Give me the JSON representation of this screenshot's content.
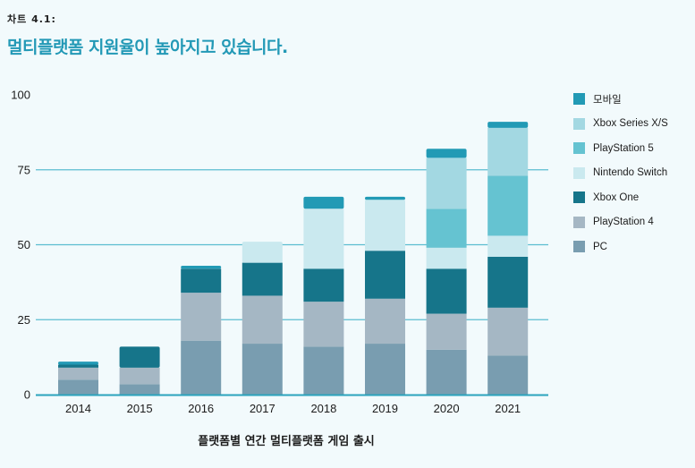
{
  "header": {
    "label": "차트 4.1:",
    "title": "멀티플랫폼 지원율이 높아지고 있습니다."
  },
  "chart_data": {
    "type": "bar",
    "stacked": true,
    "title": "멀티플랫폼 지원율이 높아지고 있습니다.",
    "xlabel": "플랫폼별 연간 멀티플랫폼 게임 출시",
    "ylabel": "",
    "ylim": [
      0,
      100
    ],
    "yticks": [
      0,
      25,
      50,
      75,
      100
    ],
    "grid": true,
    "legend_position": "right",
    "categories": [
      "2014",
      "2015",
      "2016",
      "2017",
      "2018",
      "2019",
      "2020",
      "2021"
    ],
    "series": [
      {
        "name": "PC",
        "color": "#799db0",
        "values": [
          5,
          3.5,
          18,
          17,
          16,
          17,
          15,
          13
        ]
      },
      {
        "name": "PlayStation 4",
        "color": "#a5b7c4",
        "values": [
          4,
          5.5,
          16,
          16,
          15,
          15,
          12,
          16
        ]
      },
      {
        "name": "Xbox One",
        "color": "#16758a",
        "values": [
          1,
          7,
          8,
          11,
          11,
          16,
          15,
          17
        ]
      },
      {
        "name": "Nintendo Switch",
        "color": "#cae9ef",
        "values": [
          0,
          0,
          0,
          7,
          20,
          17,
          7,
          7
        ]
      },
      {
        "name": "PlayStation 5",
        "color": "#65c3d1",
        "values": [
          0,
          0,
          0,
          0,
          0,
          0,
          13,
          20
        ]
      },
      {
        "name": "Xbox Series X/S",
        "color": "#a3d8e2",
        "values": [
          0,
          0,
          0,
          0,
          0,
          0,
          17,
          16
        ]
      },
      {
        "name": "모바일",
        "color": "#229ab5",
        "values": [
          1,
          0,
          1,
          0,
          4,
          1,
          3,
          2
        ]
      }
    ],
    "legend_order": [
      "모바일",
      "Xbox Series X/S",
      "PlayStation 5",
      "Nintendo Switch",
      "Xbox One",
      "PlayStation 4",
      "PC"
    ],
    "gridline_color": "#5bbdd0",
    "axis_color": "#2aa3bd"
  }
}
